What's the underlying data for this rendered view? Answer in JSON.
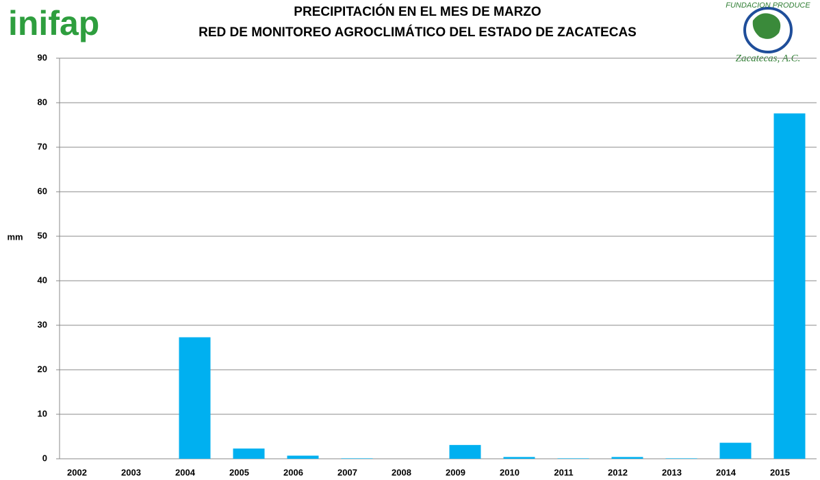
{
  "logos": {
    "left": "inifap",
    "right_top": "FUNDACION PRODUCE",
    "right_bottom": "Zacatecas, A.C."
  },
  "chart_data": {
    "type": "bar",
    "title": "PRECIPITACIÓN EN EL MES DE MARZO",
    "subtitle": "RED DE MONITOREO AGROCLIMÁTICO DEL ESTADO DE ZACATECAS",
    "y_label": "mm",
    "categories": [
      "2002",
      "2003",
      "2004",
      "2005",
      "2006",
      "2007",
      "2008",
      "2009",
      "2010",
      "2011",
      "2012",
      "2013",
      "2014",
      "2015"
    ],
    "values": [
      0,
      0,
      27.3,
      2.3,
      0.7,
      0.1,
      0,
      3.1,
      0.4,
      0.1,
      0.4,
      0.1,
      3.6,
      77.6
    ],
    "color": "#00b0f0",
    "ylim": [
      0,
      90
    ],
    "yticks": [
      0,
      10,
      20,
      30,
      40,
      50,
      60,
      70,
      80,
      90
    ],
    "grid": true
  }
}
